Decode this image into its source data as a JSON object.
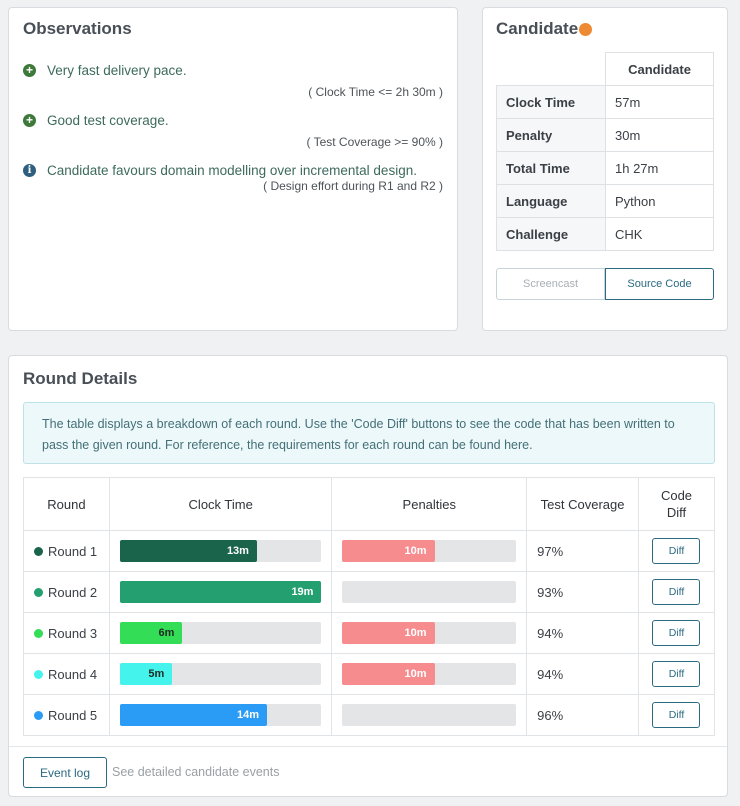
{
  "observations": {
    "title": "Observations",
    "items": [
      {
        "icon": "plus-circle-icon",
        "text": "Very fast delivery pace.",
        "detail": "( Clock Time <= 2h 30m )"
      },
      {
        "icon": "plus-circle-icon",
        "text": "Good test coverage.",
        "detail": "( Test Coverage >= 90% )"
      },
      {
        "icon": "info-circle-icon",
        "text": "Candidate favours domain modelling over incremental design.",
        "detail": "( Design effort during R1 and R2 )"
      }
    ]
  },
  "candidate": {
    "title": "Candidate",
    "status_color": "#ee8a33",
    "column_header": "Candidate",
    "rows": [
      {
        "key": "Clock Time",
        "value": "57m"
      },
      {
        "key": "Penalty",
        "value": "30m"
      },
      {
        "key": "Total Time",
        "value": "1h 27m"
      },
      {
        "key": "Language",
        "value": "Python"
      },
      {
        "key": "Challenge",
        "value": "CHK"
      }
    ],
    "tabs": [
      {
        "label": "Screencast",
        "active": false
      },
      {
        "label": "Source Code",
        "active": true
      }
    ]
  },
  "round_details": {
    "title": "Round Details",
    "info": "The table displays a breakdown of each round. Use the 'Code Diff' buttons to see the code that has been written to pass the given round. For reference, the requirements for each round can be found here.",
    "columns": [
      "Round",
      "Clock Time",
      "Penalties",
      "Test Coverage",
      "Code Diff"
    ],
    "rows": [
      {
        "round": "Round 1",
        "color": "#19644a",
        "clock_label": "13m",
        "clock_fraction": 0.68,
        "penalty_label": "10m",
        "penalty_fraction": 0.53,
        "coverage": "97%",
        "diff": "Diff"
      },
      {
        "round": "Round 2",
        "color": "#239f70",
        "clock_label": "19m",
        "clock_fraction": 1.0,
        "penalty_label": "",
        "penalty_fraction": 0,
        "coverage": "93%",
        "diff": "Diff"
      },
      {
        "round": "Round 3",
        "color": "#33dd55",
        "clock_label": "6m",
        "clock_fraction": 0.31,
        "penalty_label": "10m",
        "penalty_fraction": 0.53,
        "coverage": "94%",
        "diff": "Diff"
      },
      {
        "round": "Round 4",
        "color": "#44f4ec",
        "clock_label": "5m",
        "clock_fraction": 0.26,
        "penalty_label": "10m",
        "penalty_fraction": 0.53,
        "coverage": "94%",
        "diff": "Diff"
      },
      {
        "round": "Round 5",
        "color": "#2a9cf5",
        "clock_label": "14m",
        "clock_fraction": 0.73,
        "penalty_label": "",
        "penalty_fraction": 0,
        "coverage": "96%",
        "diff": "Diff"
      }
    ],
    "penalty_color": "#f78c8f",
    "event_log_label": "Event log",
    "event_log_text": "See detailed candidate events"
  }
}
